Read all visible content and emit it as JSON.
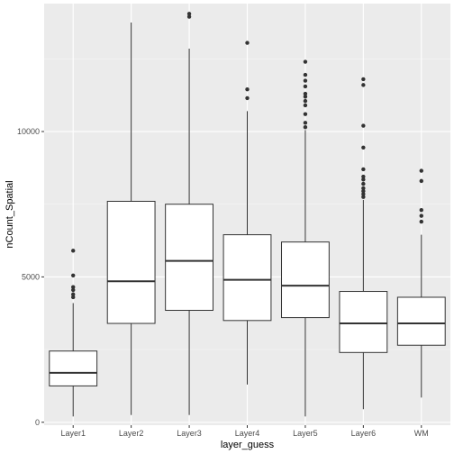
{
  "chart_data": {
    "type": "boxplot",
    "xlabel": "layer_guess",
    "ylabel": "nCount_Spatial",
    "ylim": [
      -100,
      14400
    ],
    "y_ticks": [
      0,
      5000,
      10000
    ],
    "y_tick_labels": [
      "0",
      "5000",
      "10000"
    ],
    "grid": true,
    "legend": "none",
    "categories": [
      "Layer1",
      "Layer2",
      "Layer3",
      "Layer4",
      "Layer5",
      "Layer6",
      "WM"
    ],
    "boxes": [
      {
        "category": "Layer1",
        "whisker_low": 200,
        "q1": 1250,
        "median": 1700,
        "q3": 2450,
        "whisker_high": 4100,
        "outliers": [
          4300,
          4400,
          4550,
          4650,
          5050,
          5900
        ]
      },
      {
        "category": "Layer2",
        "whisker_low": 250,
        "q1": 3400,
        "median": 4850,
        "q3": 7600,
        "whisker_high": 13750,
        "outliers": []
      },
      {
        "category": "Layer3",
        "whisker_low": 250,
        "q1": 3850,
        "median": 5550,
        "q3": 7500,
        "whisker_high": 12850,
        "outliers": [
          13950,
          14050
        ]
      },
      {
        "category": "Layer4",
        "whisker_low": 1300,
        "q1": 3500,
        "median": 4900,
        "q3": 6450,
        "whisker_high": 10700,
        "outliers": [
          11150,
          11450,
          13050
        ]
      },
      {
        "category": "Layer5",
        "whisker_low": 200,
        "q1": 3600,
        "median": 4700,
        "q3": 6200,
        "whisker_high": 10050,
        "outliers": [
          10150,
          10300,
          10600,
          10900,
          11050,
          11200,
          11300,
          11550,
          11750,
          11950,
          12400
        ]
      },
      {
        "category": "Layer6",
        "whisker_low": 450,
        "q1": 2400,
        "median": 3400,
        "q3": 4500,
        "whisker_high": 7650,
        "outliers": [
          7750,
          7850,
          7950,
          8050,
          8200,
          8350,
          8450,
          8700,
          9450,
          10200,
          11600,
          11800
        ]
      },
      {
        "category": "WM",
        "whisker_low": 850,
        "q1": 2650,
        "median": 3400,
        "q3": 4300,
        "whisker_high": 6450,
        "outliers": [
          6900,
          7100,
          7300,
          8300,
          8650
        ]
      }
    ],
    "colors": {
      "panel_background": "#ebebeb",
      "grid_major": "#ffffff",
      "grid_minor": "#f5f5f5",
      "box_fill": "#ffffff",
      "box_stroke": "#333333",
      "outlier": "#333333",
      "tick_label": "#4d4d4d",
      "axis_title": "#000000"
    }
  }
}
